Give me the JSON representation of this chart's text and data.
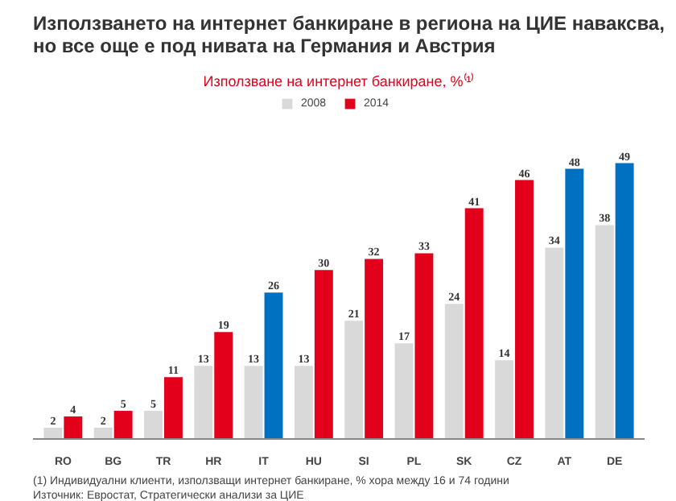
{
  "chart_data": {
    "type": "bar",
    "title": "Използването на интернет банкиране в региона на ЦИЕ наваксва, но все още е под нивата на Германия и Австрия",
    "subtitle": "Използване на интернет банкиране, %⁽¹⁾",
    "categories": [
      "RO",
      "BG",
      "TR",
      "HR",
      "IT",
      "HU",
      "SI",
      "PL",
      "SK",
      "CZ",
      "AT",
      "DE"
    ],
    "series": [
      {
        "name": "2008",
        "color": "#d9d9d9",
        "values": [
          2,
          2,
          5,
          13,
          13,
          13,
          21,
          17,
          24,
          14,
          34,
          38
        ]
      },
      {
        "name": "2014",
        "color": "#e2001a",
        "colors": [
          "#e2001a",
          "#e2001a",
          "#e2001a",
          "#e2001a",
          "#0070c0",
          "#e2001a",
          "#e2001a",
          "#e2001a",
          "#e2001a",
          "#e2001a",
          "#0070c0",
          "#0070c0"
        ],
        "values": [
          4,
          5,
          11,
          19,
          26,
          30,
          32,
          33,
          41,
          46,
          48,
          49
        ]
      }
    ],
    "data_labels": true,
    "legend": "top",
    "grid": false,
    "annotations": [
      "(1) Индивидуални клиенти, използващи интернет банкиране, % хора между 16 и 74 години",
      "Източник: Евростат, Стратегически анализи за ЦИЕ"
    ]
  }
}
